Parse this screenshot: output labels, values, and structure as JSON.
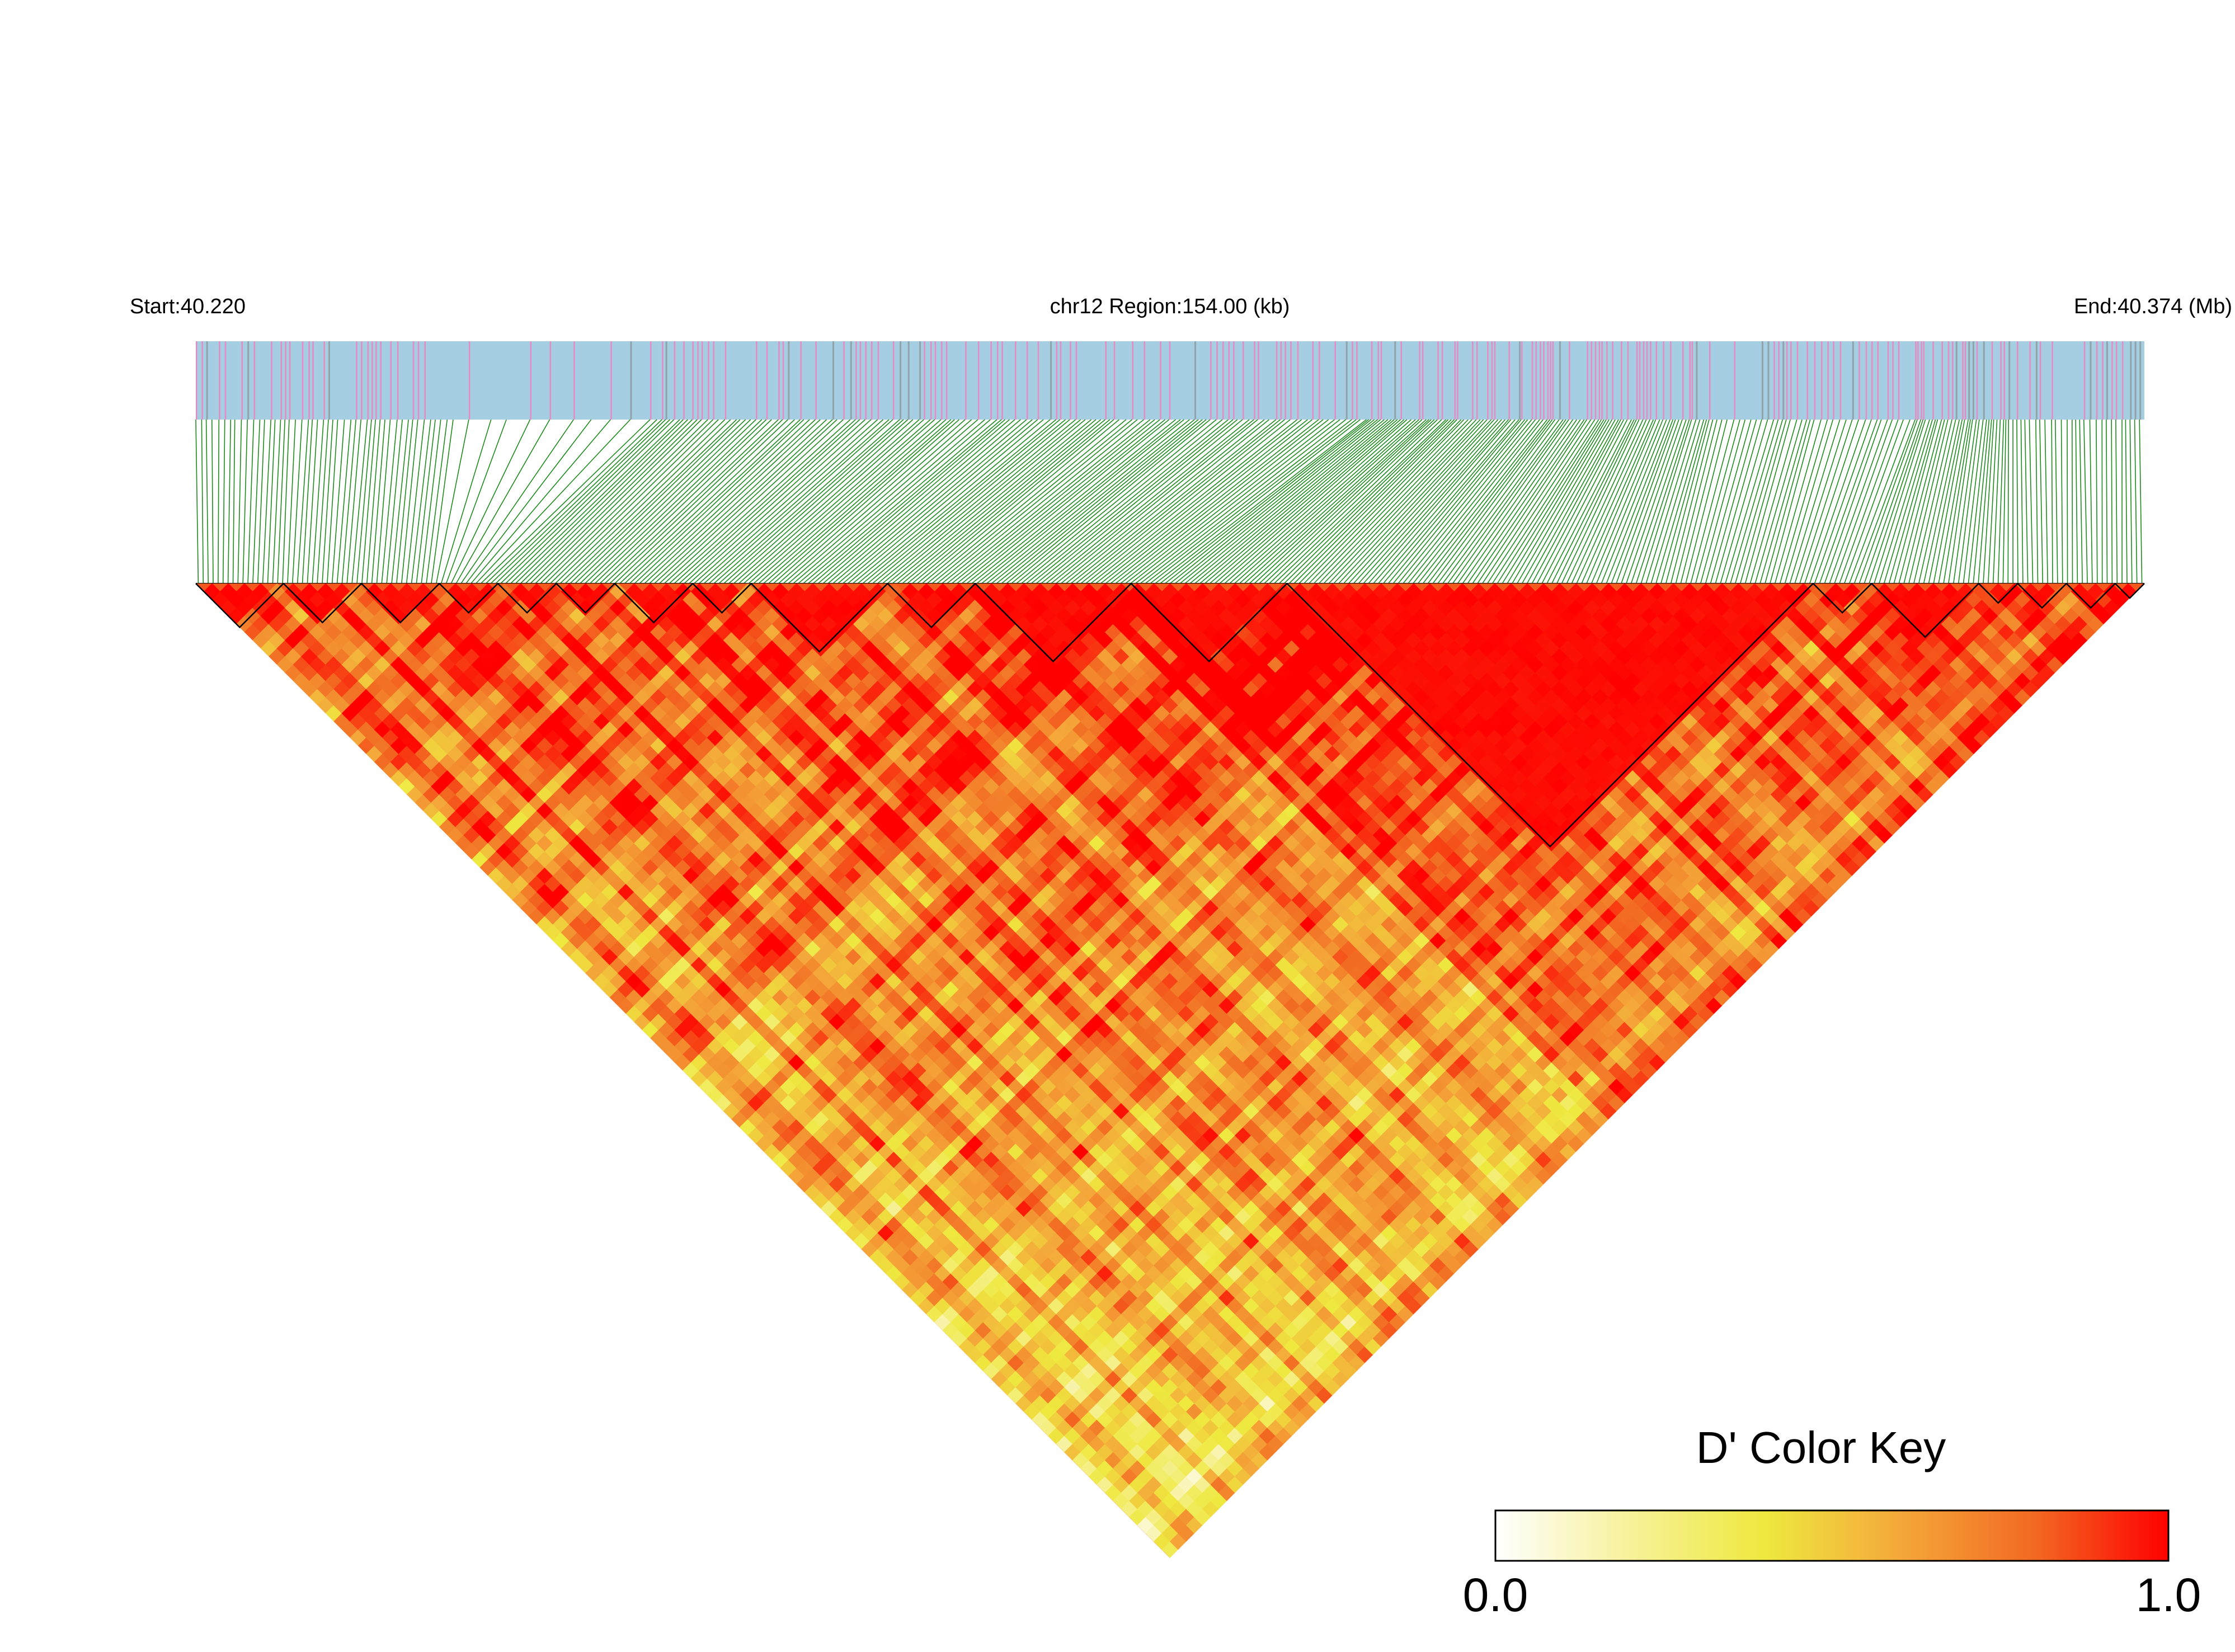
{
  "header": {
    "start_label": "Start:40.220",
    "region_label": "chr12 Region:154.00 (kb)",
    "end_label": "End:40.374 (Mb)"
  },
  "colors": {
    "snp_bar_base": "#a6cee3",
    "snp_mark_pink": "#e58bc2",
    "snp_mark_gray": "#8fa3a8",
    "connector_green": "#1e8a1e",
    "block_outline": "#000000"
  },
  "color_key": {
    "title": "D' Color Key",
    "min_label": "0.0",
    "max_label": "1.0",
    "stops": [
      "#ffffff",
      "#f7f19a",
      "#eee93f",
      "#f4a83a",
      "#f26a22",
      "#ff0000"
    ]
  },
  "chart_data": {
    "type": "heatmap",
    "title": "D' Color Key",
    "chromosome": "chr12",
    "region_start_mb": 40.22,
    "region_end_mb": 40.374,
    "region_length_kb": 154.0,
    "measure": "D'",
    "value_range": [
      0.0,
      1.0
    ],
    "ld_blocks_fraction_of_region": [
      [
        0.0,
        0.045
      ],
      [
        0.045,
        0.085
      ],
      [
        0.085,
        0.125
      ],
      [
        0.125,
        0.155
      ],
      [
        0.155,
        0.185
      ],
      [
        0.185,
        0.215
      ],
      [
        0.215,
        0.255
      ],
      [
        0.255,
        0.285
      ],
      [
        0.285,
        0.355
      ],
      [
        0.355,
        0.4
      ],
      [
        0.4,
        0.48
      ],
      [
        0.48,
        0.56
      ],
      [
        0.56,
        0.83
      ],
      [
        0.83,
        0.86
      ],
      [
        0.86,
        0.915
      ],
      [
        0.915,
        0.935
      ],
      [
        0.935,
        0.96
      ],
      [
        0.96,
        0.985
      ],
      [
        0.985,
        1.0
      ]
    ]
  }
}
